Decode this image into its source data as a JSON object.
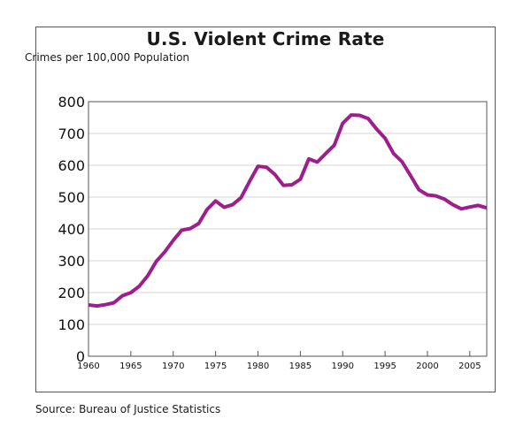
{
  "chart_data": {
    "type": "line",
    "title": "U.S. Violent Crime Rate",
    "ylabel": "Crimes per 100,000 Population",
    "xlabel": "",
    "xlim": [
      1960,
      2007
    ],
    "ylim": [
      0,
      800
    ],
    "y_ticks": [
      0,
      100,
      200,
      300,
      400,
      500,
      600,
      700,
      800
    ],
    "x_ticks": [
      1960,
      1965,
      1970,
      1975,
      1980,
      1985,
      1990,
      1995,
      2000,
      2005
    ],
    "grid": "horizontal",
    "line_color": "#9c1f8c",
    "series": [
      {
        "x": [
          1960,
          1961,
          1962,
          1963,
          1964,
          1965,
          1966,
          1967,
          1968,
          1969,
          1970,
          1971,
          1972,
          1973,
          1974,
          1975,
          1976,
          1977,
          1978,
          1979,
          1980,
          1981,
          1982,
          1983,
          1984,
          1985,
          1986,
          1987,
          1988,
          1989,
          1990,
          1991,
          1992,
          1993,
          1994,
          1995,
          1996,
          1997,
          1998,
          1999,
          2000,
          2001,
          2002,
          2003,
          2004,
          2005,
          2006,
          2007
        ],
        "y": [
          161,
          158,
          162,
          168,
          190,
          200,
          220,
          253,
          298,
          328,
          364,
          396,
          401,
          417,
          461,
          488,
          468,
          476,
          498,
          549,
          597,
          594,
          571,
          537,
          539,
          556,
          620,
          610,
          637,
          663,
          732,
          758,
          757,
          747,
          714,
          685,
          637,
          611,
          568,
          523,
          507,
          504,
          494,
          476,
          463,
          469,
          474,
          466
        ]
      }
    ]
  },
  "source": "Source: Bureau of Justice Statistics"
}
